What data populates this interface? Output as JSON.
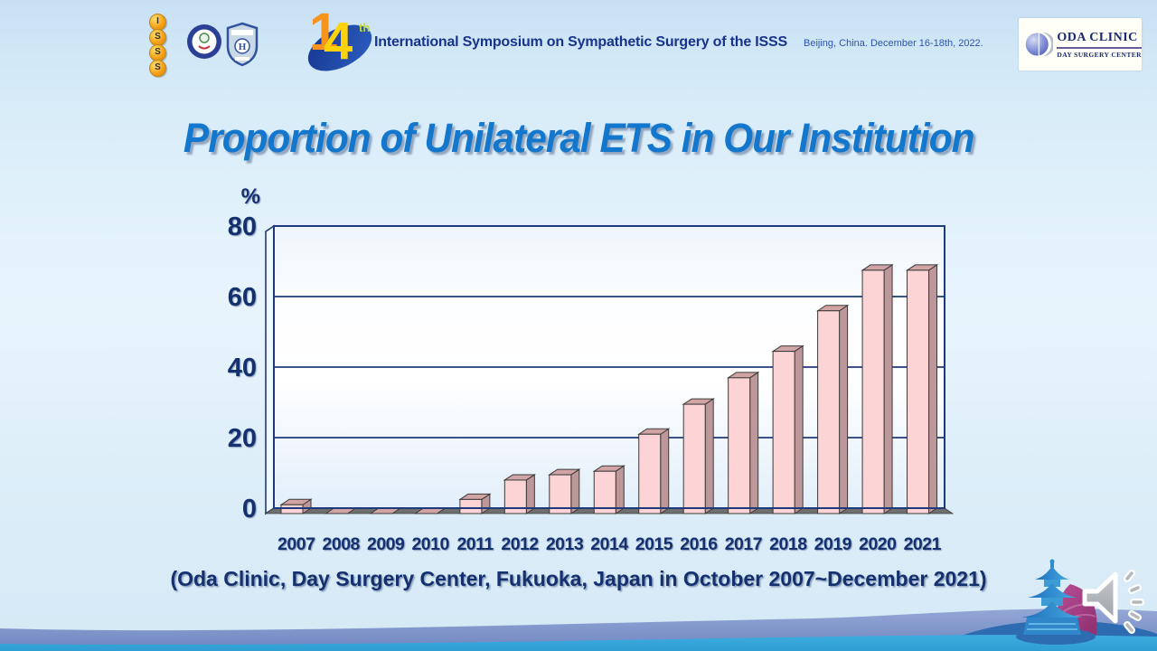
{
  "header": {
    "isss_letters": [
      "I",
      "S",
      "S",
      "S"
    ],
    "badge_number": "14",
    "badge_suffix": "th",
    "symposium_title": "International Symposium on Sympathetic Surgery of the ISSS",
    "location_date": "Beijing, China. December 16-18th, 2022.",
    "oda_logo": {
      "line1": "ODA CLINIC",
      "line2": "DAY SURGERY CENTER"
    }
  },
  "slide": {
    "title": "Proportion of Unilateral ETS in Our Institution",
    "caption": "(Oda Clinic, Day Surgery Center, Fukuoka, Japan in October 2007~December 2021)"
  },
  "chart_data": {
    "type": "bar",
    "style": "3d",
    "title": "Proportion of Unilateral ETS in Our Institution",
    "categories": [
      "2007",
      "2008",
      "2009",
      "2010",
      "2011",
      "2012",
      "2013",
      "2014",
      "2015",
      "2016",
      "2017",
      "2018",
      "2019",
      "2020",
      "2021"
    ],
    "values": [
      2.5,
      0,
      0,
      0,
      4,
      9.5,
      11,
      12,
      22.5,
      31,
      38.5,
      46,
      57.5,
      69,
      69
    ],
    "ylabel": "%",
    "yticks": [
      0,
      20,
      40,
      60,
      80
    ],
    "ylim": [
      0,
      80
    ],
    "grid": true,
    "legend": "none",
    "bar_front_color": "#fcd4d5",
    "bar_top_color": "#d2a3a5",
    "bar_side_color": "#bd9799",
    "bar_outline_color": "#3a3a3a",
    "axis_color": "#1f3a7a",
    "label_color": "#15306e",
    "floor_color": "#6f6f6f"
  },
  "icons": {
    "speaker": "audio-speaker-icon",
    "pagoda": "temple-of-heaven-graphic",
    "sail": "sail-graphic",
    "isss_badge": "isss-stacked-logo",
    "round_seal": "society-round-seal",
    "shield": "hospital-shield-emblem",
    "oda_sphere": "oda-sphere-logo"
  }
}
